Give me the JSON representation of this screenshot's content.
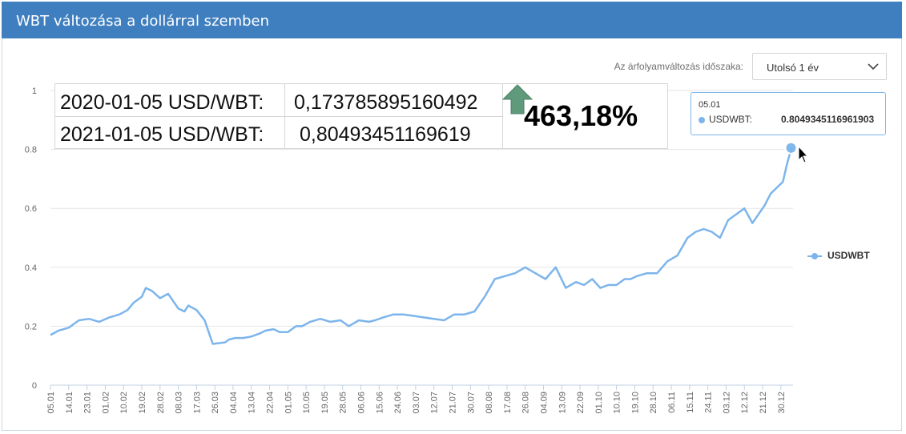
{
  "header": {
    "title": "WBT változása a dollárral szemben"
  },
  "controls": {
    "period_label": "Az árfolyamváltozás időszaka:",
    "period_value": "Utolsó 1 év"
  },
  "summary": {
    "row1_label": "2020-01-05 USD/WBT:",
    "row1_value": "0,173785895160492",
    "row2_label": "2021-01-05 USD/WBT:",
    "row2_value": "0,80493451169619",
    "change_pct": "463,18%",
    "arrow_icon": "up-arrow-icon",
    "arrow_color": "#5f9a7c"
  },
  "tooltip": {
    "date": "05.01",
    "series": "USDWBT:",
    "value": "0.8049345116961903"
  },
  "legend": {
    "label": "USDWBT",
    "color": "#7cb5ec"
  },
  "chart_data": {
    "type": "line",
    "grid": "horizontal",
    "legend_position": "right",
    "ylim": [
      0,
      1
    ],
    "y_ticks": [
      {
        "v": 0,
        "label": "0"
      },
      {
        "v": 0.2,
        "label": "0.2"
      },
      {
        "v": 0.4,
        "label": "0.4"
      },
      {
        "v": 0.6,
        "label": "0.6"
      },
      {
        "v": 0.8,
        "label": "0.8"
      },
      {
        "v": 1,
        "label": "1"
      }
    ],
    "x_tick_labels": [
      "05.01",
      "14.01",
      "23.01",
      "01.02",
      "10.02",
      "19.02",
      "28.02",
      "08.03",
      "17.03",
      "26.03",
      "04.04",
      "13.04",
      "22.04",
      "01.05",
      "10.05",
      "19.05",
      "28.05",
      "06.06",
      "15.06",
      "24.06",
      "03.07",
      "12.07",
      "21.07",
      "30.07",
      "08.08",
      "17.08",
      "26.08",
      "04.09",
      "13.09",
      "22.09",
      "01.10",
      "10.10",
      "19.10",
      "28.10",
      "06.11",
      "15.11",
      "24.11",
      "03.12",
      "12.12",
      "21.12",
      "30.12"
    ],
    "series": [
      {
        "name": "USDWBT",
        "color": "#7cb5ec",
        "x_day": [
          0,
          4,
          9,
          14,
          19,
          24,
          29,
          34,
          38,
          41,
          45,
          47,
          50,
          54,
          58,
          63,
          66,
          68,
          72,
          76,
          80,
          86,
          88,
          91,
          95,
          99,
          103,
          106,
          110,
          113,
          117,
          121,
          124,
          128,
          133,
          138,
          143,
          147,
          152,
          157,
          160,
          164,
          169,
          174,
          179,
          184,
          189,
          194,
          199,
          204,
          209,
          214,
          219,
          224,
          229,
          234,
          239,
          244,
          249,
          254,
          259,
          263,
          267,
          271,
          275,
          279,
          283,
          286,
          289,
          294,
          299,
          304,
          309,
          314,
          318,
          322,
          326,
          330,
          334,
          338,
          342,
          346,
          349,
          352,
          355,
          358,
          361,
          363,
          365,
          366
        ],
        "values": [
          0.17,
          0.185,
          0.195,
          0.22,
          0.225,
          0.215,
          0.23,
          0.24,
          0.255,
          0.28,
          0.3,
          0.33,
          0.32,
          0.295,
          0.31,
          0.26,
          0.25,
          0.27,
          0.255,
          0.22,
          0.14,
          0.145,
          0.155,
          0.16,
          0.16,
          0.165,
          0.175,
          0.185,
          0.19,
          0.18,
          0.18,
          0.2,
          0.2,
          0.215,
          0.225,
          0.215,
          0.22,
          0.2,
          0.22,
          0.215,
          0.22,
          0.23,
          0.24,
          0.24,
          0.235,
          0.23,
          0.225,
          0.22,
          0.24,
          0.24,
          0.25,
          0.3,
          0.36,
          0.37,
          0.38,
          0.4,
          0.38,
          0.36,
          0.4,
          0.33,
          0.35,
          0.34,
          0.36,
          0.33,
          0.34,
          0.34,
          0.36,
          0.36,
          0.37,
          0.38,
          0.38,
          0.42,
          0.44,
          0.5,
          0.52,
          0.53,
          0.52,
          0.5,
          0.56,
          0.58,
          0.6,
          0.55,
          0.58,
          0.61,
          0.65,
          0.67,
          0.69,
          0.75,
          0.8,
          0.805
        ]
      }
    ]
  }
}
